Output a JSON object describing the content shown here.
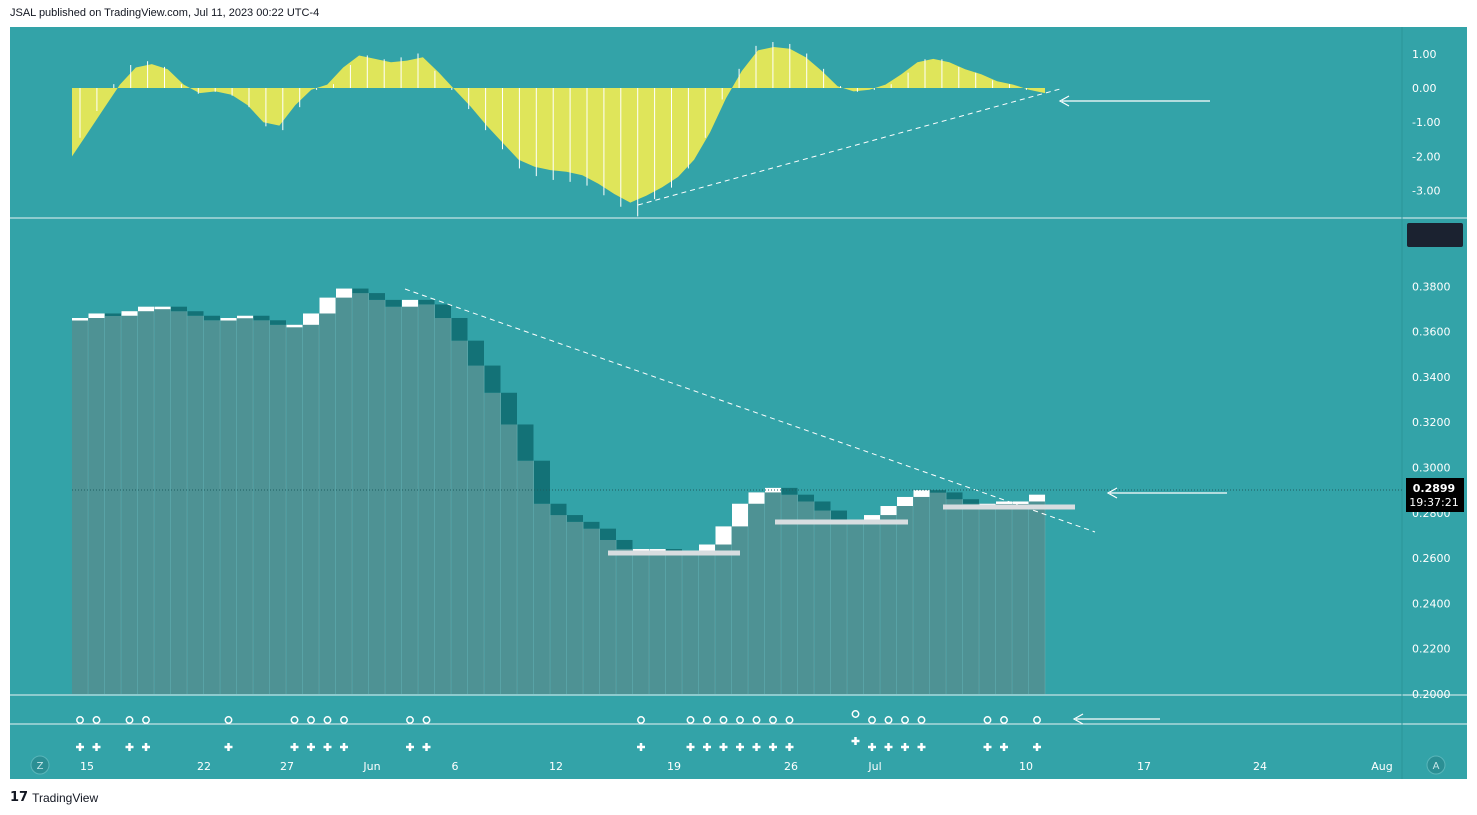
{
  "header": {
    "publish_text": "JSAL published on TradingView.com, Jul 11, 2023 00:22 UTC-4"
  },
  "footer": {
    "brand": "TradingView",
    "logo_glyph": "17"
  },
  "colors": {
    "background": "#33a3a8",
    "oscillator_fill": "#dfe55a",
    "bar_body": "#4e9294",
    "up_candle": "#ffffff",
    "down_candle": "#137277",
    "support_line": "#d8dde0"
  },
  "price_tag": {
    "value": "0.2899",
    "countdown": "19:37:21"
  },
  "corner_buttons": {
    "left": "Z",
    "right": "A"
  },
  "chart_data": [
    {
      "type": "area",
      "pane": "oscillator",
      "y_ticks": [
        "1.00",
        "0.00",
        "-1.00",
        "-2.00",
        "-3.00"
      ],
      "ylim": [
        -3.4,
        1.4
      ],
      "values": [
        -2.0,
        -1.3,
        -0.6,
        0.1,
        0.6,
        0.7,
        0.55,
        0.1,
        -0.15,
        -0.1,
        -0.2,
        -0.5,
        -1.0,
        -1.1,
        -0.5,
        -0.05,
        0.1,
        0.6,
        0.95,
        0.85,
        0.75,
        0.8,
        0.9,
        0.45,
        -0.05,
        -0.55,
        -1.1,
        -1.6,
        -2.1,
        -2.3,
        -2.4,
        -2.45,
        -2.55,
        -2.8,
        -3.1,
        -3.35,
        -3.15,
        -2.9,
        -2.6,
        -2.1,
        -1.3,
        -0.3,
        0.5,
        1.1,
        1.2,
        1.15,
        0.9,
        0.5,
        0.05,
        -0.1,
        -0.05,
        0.1,
        0.4,
        0.75,
        0.85,
        0.75,
        0.55,
        0.4,
        0.2,
        0.1,
        -0.05,
        -0.15
      ]
    },
    {
      "type": "bar",
      "pane": "price",
      "y_ticks": [
        "0.3800",
        "0.3600",
        "0.3400",
        "0.3200",
        "0.3000",
        "0.2800",
        "0.2600",
        "0.2400",
        "0.2200",
        "0.2000"
      ],
      "ylim": [
        0.2,
        0.38
      ],
      "x_ticks": [
        "15",
        "22",
        "27",
        "Jun",
        "6",
        "12",
        "19",
        "26",
        "Jul",
        "10",
        "17",
        "24",
        "Aug"
      ],
      "values": [
        0.366,
        0.368,
        0.367,
        0.369,
        0.371,
        0.371,
        0.369,
        0.367,
        0.365,
        0.366,
        0.367,
        0.365,
        0.363,
        0.363,
        0.368,
        0.375,
        0.379,
        0.377,
        0.374,
        0.371,
        0.374,
        0.372,
        0.366,
        0.356,
        0.345,
        0.333,
        0.319,
        0.303,
        0.284,
        0.279,
        0.276,
        0.273,
        0.268,
        0.264,
        0.264,
        0.264,
        0.263,
        0.263,
        0.266,
        0.274,
        0.284,
        0.289,
        0.291,
        0.288,
        0.285,
        0.281,
        0.277,
        0.275,
        0.279,
        0.283,
        0.287,
        0.29,
        0.289,
        0.286,
        0.284,
        0.284,
        0.285,
        0.285,
        0.288
      ]
    }
  ]
}
